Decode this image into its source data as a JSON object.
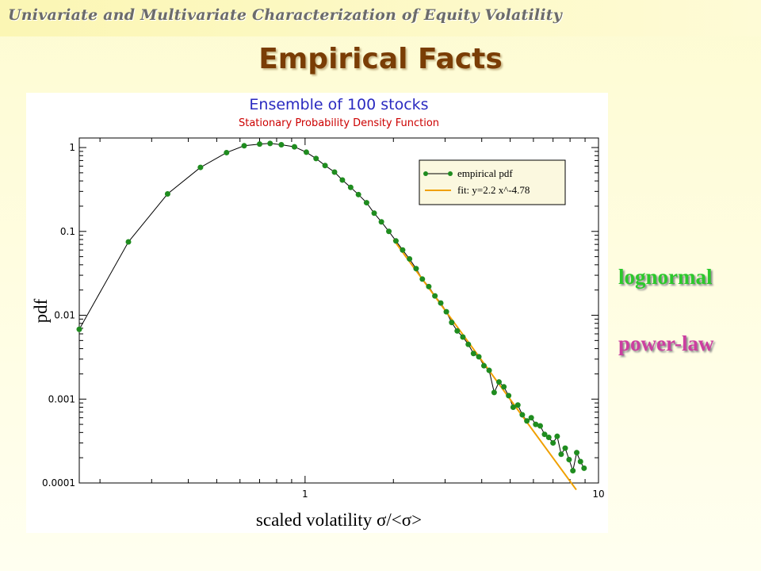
{
  "header": {
    "subtitle": "Univariate and Multivariate Characterization of Equity Volatility",
    "title": "Empirical Facts"
  },
  "side_labels": {
    "lognormal": "lognormal",
    "powerlaw": "power-law"
  },
  "colors": {
    "empirical": "#1f8c1f",
    "fit": "#f0a000",
    "title": "#2a2ac0",
    "subtitle": "#cc0000",
    "lognormal_label": "#2cc82c",
    "powerlaw_label": "#cc3fa0"
  },
  "chart_data": {
    "type": "line",
    "title": "Ensemble of 100 stocks",
    "subtitle": "Stationary Probability Density Function",
    "xlabel": "scaled volatility σ/<σ>",
    "ylabel": "pdf",
    "xscale": "log",
    "yscale": "log",
    "xlim": [
      0.17,
      10
    ],
    "ylim": [
      0.0001,
      1.3
    ],
    "xticks": [
      {
        "value": 1,
        "label": "1"
      },
      {
        "value": 10,
        "label": "10"
      }
    ],
    "yticks": [
      {
        "value": 1,
        "label": "1"
      },
      {
        "value": 0.1,
        "label": "0.1"
      },
      {
        "value": 0.01,
        "label": "0.01"
      },
      {
        "value": 0.001,
        "label": "0.001"
      },
      {
        "value": 0.0001,
        "label": "0.0001"
      }
    ],
    "grid": false,
    "legend_position": "top-right",
    "series": [
      {
        "name": "empirical pdf",
        "style": "line+markers",
        "x": [
          0.17,
          0.25,
          0.34,
          0.44,
          0.54,
          0.62,
          0.7,
          0.76,
          0.83,
          0.92,
          1.01,
          1.09,
          1.17,
          1.26,
          1.34,
          1.43,
          1.52,
          1.62,
          1.72,
          1.82,
          1.93,
          2.04,
          2.15,
          2.27,
          2.39,
          2.51,
          2.64,
          2.77,
          2.9,
          3.03,
          3.16,
          3.3,
          3.45,
          3.6,
          3.75,
          3.91,
          4.07,
          4.24,
          4.41,
          4.58,
          4.76,
          4.94,
          5.12,
          5.31,
          5.5,
          5.7,
          5.9,
          6.11,
          6.33,
          6.55,
          6.77,
          7.0,
          7.23,
          7.46,
          7.7,
          7.94,
          8.18,
          8.43,
          8.68,
          8.93
        ],
        "y": [
          0.0068,
          0.075,
          0.28,
          0.58,
          0.87,
          1.05,
          1.1,
          1.12,
          1.08,
          1.02,
          0.88,
          0.74,
          0.61,
          0.51,
          0.41,
          0.335,
          0.275,
          0.22,
          0.165,
          0.13,
          0.1,
          0.077,
          0.06,
          0.047,
          0.036,
          0.027,
          0.022,
          0.017,
          0.014,
          0.011,
          0.0082,
          0.0065,
          0.0055,
          0.0045,
          0.0035,
          0.0032,
          0.0025,
          0.0022,
          0.0012,
          0.0016,
          0.0014,
          0.0011,
          0.0008,
          0.00085,
          0.00065,
          0.00055,
          0.0006,
          0.0005,
          0.00048,
          0.00038,
          0.00035,
          0.0003,
          0.00036,
          0.00022,
          0.00026,
          0.00019,
          0.00014,
          0.00023,
          0.00018,
          0.00015
        ]
      },
      {
        "name": "fit: y=2.2 x^-4.78",
        "style": "line",
        "x": [
          2.0,
          8.4
        ],
        "y": [
          0.0799,
          8.3e-05
        ]
      }
    ]
  }
}
